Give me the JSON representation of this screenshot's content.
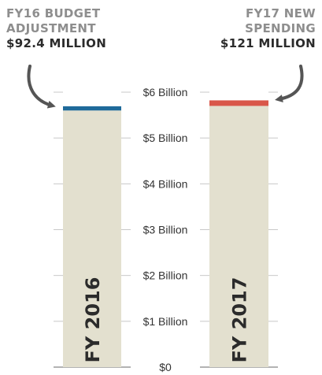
{
  "callouts": {
    "left": {
      "line1": "FY16 BUDGET",
      "line2": "ADJUSTMENT",
      "amount": "$92.4 MILLION"
    },
    "right": {
      "line1": "FY17 NEW",
      "line2": "SPENDING",
      "amount": "$121 MILLION"
    }
  },
  "colors": {
    "bar_base": "#e3e0cf",
    "adjustment": "#1f6a9a",
    "new_spending": "#d9574a",
    "tick_text": "#333333",
    "gridline": "#c8c8c8",
    "bar_label": "#2b2b2b",
    "arrow": "#555555"
  },
  "chart_data": {
    "type": "bar",
    "categories": [
      "FY 2016",
      "FY 2017"
    ],
    "series": [
      {
        "values": [
          5.6,
          5.7
        ]
      },
      {
        "values": [
          0.0924,
          0.121
        ]
      }
    ],
    "title": "",
    "xlabel": "",
    "ylabel": "",
    "ylim": [
      0,
      6
    ],
    "yticks": [
      {
        "value": 0,
        "label": "$0"
      },
      {
        "value": 1,
        "label": "$1 Billion"
      },
      {
        "value": 2,
        "label": "$2 Billion"
      },
      {
        "value": 3,
        "label": "$3 Billion"
      },
      {
        "value": 4,
        "label": "$4 Billion"
      },
      {
        "value": 5,
        "label": "$5 Billion"
      },
      {
        "value": 6,
        "label": "$6 Billion"
      }
    ],
    "grid": true,
    "legend": "none",
    "stacked": true
  }
}
